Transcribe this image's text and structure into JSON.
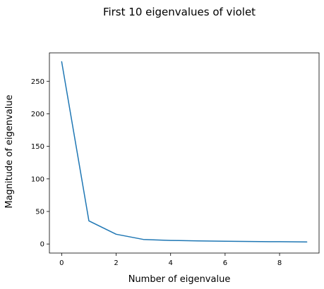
{
  "chart_data": {
    "type": "line",
    "title": "First 10 eigenvalues of violet",
    "xlabel": "Number of eigenvalue",
    "ylabel": "Magnitude of eigenvalue",
    "x": [
      0,
      1,
      2,
      3,
      4,
      5,
      6,
      7,
      8,
      9
    ],
    "series": [
      {
        "values": [
          280,
          35.5,
          15,
          7,
          5.5,
          4.8,
          4.3,
          3.8,
          3.5,
          3.2
        ],
        "color": "#1f77b4"
      }
    ],
    "xlim": [
      -0.45,
      9.45
    ],
    "ylim": [
      -13.9,
      293.6
    ],
    "xticks": [
      0,
      2,
      4,
      6,
      8
    ],
    "yticks": [
      0,
      50,
      100,
      150,
      200,
      250
    ],
    "grid": false,
    "legend": false
  }
}
